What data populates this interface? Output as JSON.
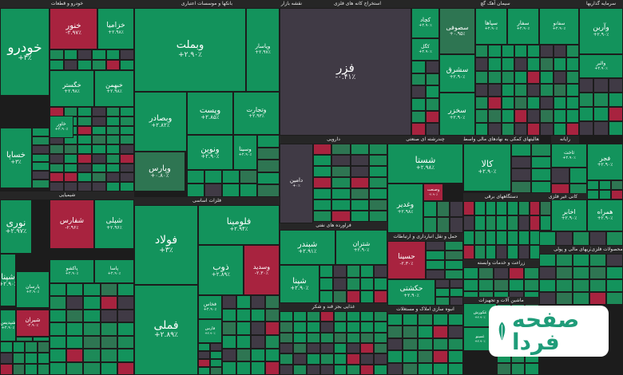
{
  "chart_data": {
    "type": "treemap",
    "title": "نقشه بازار",
    "colors": {
      "up_strong": "#13935c",
      "up_mid": "#1d8a58",
      "up_weak": "#2e7552",
      "flat": "#403a45",
      "down_weak": "#6a2f40",
      "down_strong": "#a8233f"
    },
    "sectors": [
      {
        "name": "خودرو و قطعات"
      },
      {
        "name": "بانکها و موسسات اعتباری"
      },
      {
        "name": "نقشه بازار"
      },
      {
        "name": "استخراج کانه های فلزی"
      },
      {
        "name": "سیمان آهک گچ"
      },
      {
        "name": "سرمایه گذاریها"
      },
      {
        "name": "فلزات اساسی"
      },
      {
        "name": "دارویی"
      },
      {
        "name": "چندرشته ای صنعتی"
      },
      {
        "name": "فعالیتهای کمکی به نهادهای مالی واسط"
      },
      {
        "name": "رایانه"
      },
      {
        "name": "شیمیایی"
      },
      {
        "name": "فراورده های نفتی"
      },
      {
        "name": "حمل و نقل انبارداری و ارتباطات"
      },
      {
        "name": "دستگاههای برقی"
      },
      {
        "name": "کانی غیر فلزی"
      },
      {
        "name": "انبوه سازی املاک و مستغلات"
      },
      {
        "name": "زراعت و خدمات وابسته"
      },
      {
        "name": "واسطه گریهای مالی و پولی"
      },
      {
        "name": "محصولات فلزی"
      },
      {
        "name": "غذایی بجز قند و شکر"
      },
      {
        "name": "ماشین آلات و تجهیزات"
      }
    ],
    "tickers": [
      {
        "symbol": "خودرو",
        "change_pct": 3.0,
        "label": "+۳٪"
      },
      {
        "symbol": "خنور",
        "change_pct": -2.97,
        "label": "-۲.۹۷٪"
      },
      {
        "symbol": "خزامیا",
        "change_pct": 2.98,
        "label": "+۲.۹۸٪"
      },
      {
        "symbol": "خگستر",
        "change_pct": 2.98,
        "label": "+۲.۹۸٪"
      },
      {
        "symbol": "خبهمن",
        "change_pct": 2.98,
        "label": "+۲.۹۸٪"
      },
      {
        "symbol": "خساپا",
        "change_pct": 3.0,
        "label": "+۳٪"
      },
      {
        "symbol": "خاور",
        "change_pct": 2.9,
        "label": "+۲.۹۰٪"
      },
      {
        "symbol": "وبملت",
        "change_pct": 2.9,
        "label": "+۲.۹۰٪"
      },
      {
        "symbol": "وپاسار",
        "change_pct": 2.97,
        "label": "+۲.۹۷٪"
      },
      {
        "symbol": "وبصادر",
        "change_pct": 2.82,
        "label": "+۲.۸۲٪"
      },
      {
        "symbol": "وپست",
        "change_pct": 2.85,
        "label": "+۲.۸۵٪"
      },
      {
        "symbol": "وتجارت",
        "change_pct": 2.93,
        "label": "+۲.۹۳٪"
      },
      {
        "symbol": "وپارس",
        "change_pct": 0.8,
        "label": "+۰.۸۰٪"
      },
      {
        "symbol": "ونوین",
        "change_pct": 2.9,
        "label": "+۲.۹۰٪"
      },
      {
        "symbol": "وسینا",
        "change_pct": 2.9,
        "label": "+۲.۹۰٪"
      },
      {
        "symbol": "فزر",
        "change_pct": -0.41,
        "label": "-۰.۴۱٪"
      },
      {
        "symbol": "کچاد",
        "change_pct": 2.9,
        "label": "+۲.۹۰٪"
      },
      {
        "symbol": "کگل",
        "change_pct": 2.9,
        "label": "+۲.۹۰٪"
      },
      {
        "symbol": "سصوفی",
        "change_pct": 0.95,
        "label": "+۰.۹۵٪"
      },
      {
        "symbol": "سشرق",
        "change_pct": 2.9,
        "label": "+۲.۹۰٪"
      },
      {
        "symbol": "سخزر",
        "change_pct": 2.9,
        "label": "+۲.۹۰٪"
      },
      {
        "symbol": "سپاها",
        "change_pct": 2.9,
        "label": "+۲.۹۰٪"
      },
      {
        "symbol": "سفار",
        "change_pct": 2.9,
        "label": "+۲.۹۰٪"
      },
      {
        "symbol": "سفانو",
        "change_pct": 2.9,
        "label": "+۲.۹۰٪"
      },
      {
        "symbol": "وآرین",
        "change_pct": 2.9,
        "label": "+۲.۹۰٪"
      },
      {
        "symbol": "والبر",
        "change_pct": 2.9,
        "label": "+۲.۹۰٪"
      },
      {
        "symbol": "فولاد",
        "change_pct": 3.0,
        "label": "+۳٪"
      },
      {
        "symbol": "فملی",
        "change_pct": 2.89,
        "label": "+۲.۸۹٪"
      },
      {
        "symbol": "فلومینا",
        "change_pct": 2.94,
        "label": "+۲.۹۴٪"
      },
      {
        "symbol": "ذوب",
        "change_pct": 2.89,
        "label": "+۲.۸۹٪"
      },
      {
        "symbol": "وسدید",
        "change_pct": -2.3,
        "label": "-۲.۳۰٪"
      },
      {
        "symbol": "فخاس",
        "change_pct": 2.9,
        "label": "+۲.۹۰٪"
      },
      {
        "symbol": "دامین",
        "change_pct": 0.0,
        "label": "+۰٪"
      },
      {
        "symbol": "شستا",
        "change_pct": 2.98,
        "label": "+۲.۹۸٪"
      },
      {
        "symbol": "وغدیر",
        "change_pct": 2.98,
        "label": "+۲.۹۸٪"
      },
      {
        "symbol": "وصنعت",
        "change_pct": -2.9,
        "label": "-۲.۹۰٪"
      },
      {
        "symbol": "کالا",
        "change_pct": 2.9,
        "label": "+۲.۹۰٪"
      },
      {
        "symbol": "نوری",
        "change_pct": 2.97,
        "label": "+۲.۹۷٪"
      },
      {
        "symbol": "شفارس",
        "change_pct": -2.96,
        "label": "-۲.۹۶٪"
      },
      {
        "symbol": "شپلی",
        "change_pct": 2.96,
        "label": "+۲.۹۶٪"
      },
      {
        "symbol": "شپنا",
        "change_pct": 2.9,
        "label": "+۲.۹۰٪"
      },
      {
        "symbol": "شبندر",
        "change_pct": 2.91,
        "label": "+۲.۹۱٪"
      },
      {
        "symbol": "شتران",
        "change_pct": 2.9,
        "label": "+۲.۹۰٪"
      },
      {
        "symbol": "شپنا",
        "change_pct": 2.9,
        "label": "+۲.۹۰٪"
      },
      {
        "symbol": "حسینا",
        "change_pct": -2.3,
        "label": "-۲.۳۰٪"
      },
      {
        "symbol": "حکشتی",
        "change_pct": 2.9,
        "label": "+۲.۹۰٪"
      },
      {
        "symbol": "اخابر",
        "change_pct": 2.9,
        "label": "+۲.۹۰٪"
      },
      {
        "symbol": "همراه",
        "change_pct": 2.9,
        "label": "+۲.۹۰٪"
      },
      {
        "symbol": "فجر",
        "change_pct": 2.9,
        "label": "+۲.۹۰٪"
      },
      {
        "symbol": "ثاخت",
        "change_pct": 2.9,
        "label": "+۲.۹۰٪"
      },
      {
        "symbol": "شیران",
        "change_pct": -2.9,
        "label": "-۲.۹۰٪"
      },
      {
        "symbol": "شپدیس",
        "change_pct": 2.9,
        "label": "+۲.۹۰٪"
      },
      {
        "symbol": "پارسان",
        "change_pct": 2.9,
        "label": "+۲.۹۰٪"
      },
      {
        "symbol": "پاکشو",
        "change_pct": 2.9,
        "label": "+۲.۹۰٪"
      },
      {
        "symbol": "پاسا",
        "change_pct": 2.9,
        "label": "+۲.۹۰٪"
      },
      {
        "symbol": "غکورش",
        "change_pct": 2.9,
        "label": "+۲.۹۰٪"
      },
      {
        "symbol": "غمینو",
        "change_pct": 2.9,
        "label": "+۲.۹۰٪"
      },
      {
        "symbol": "فارس",
        "change_pct": 2.9,
        "label": "+۲.۹۰٪"
      }
    ]
  }
}
